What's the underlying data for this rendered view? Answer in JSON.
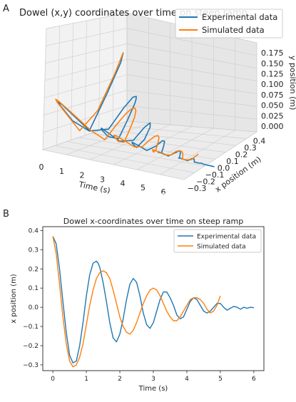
{
  "panels": {
    "a": "A",
    "b": "B"
  },
  "colors": {
    "experimental": "#1f77b4",
    "simulated": "#ff7f0e",
    "pane": "#eeeeee",
    "grid": "#cccccc"
  },
  "chart_data": [
    {
      "type": "line",
      "projection": "3d",
      "title": "Dowel (x,y) coordinates over time on steep ramp",
      "xlabel": "Time (s)",
      "ylabel": "x position (m)",
      "zlabel": "y position (m)",
      "xticks": [
        "0",
        "1",
        "2",
        "3",
        "4",
        "5",
        "6"
      ],
      "yticks": [
        "−0.3",
        "−0.2",
        "−0.1",
        "0.0",
        "0.1",
        "0.2",
        "0.3",
        "0.4"
      ],
      "zticks": [
        "0.000",
        "0.025",
        "0.050",
        "0.075",
        "0.100",
        "0.125",
        "0.150",
        "0.175"
      ],
      "xlim": [
        0,
        6
      ],
      "ylim": [
        -0.3,
        0.4
      ],
      "zlim": [
        0,
        0.2
      ],
      "grid": true,
      "legend": "top-right",
      "series": [
        {
          "name": "Experimental data"
        },
        {
          "name": "Simulated data"
        }
      ]
    },
    {
      "type": "line",
      "title": "Dowel x-coordinates over time on steep ramp",
      "xlabel": "Time (s)",
      "ylabel": "x position (m)",
      "xlim": [
        -0.3,
        6.3
      ],
      "ylim": [
        -0.33,
        0.42
      ],
      "xticks": [
        0,
        1,
        2,
        3,
        4,
        5,
        6
      ],
      "yticks": [
        -0.3,
        -0.2,
        -0.1,
        0.0,
        0.1,
        0.2,
        0.3,
        0.4
      ],
      "grid": false,
      "legend": "top-right",
      "series": [
        {
          "name": "Experimental data",
          "x": [
            0,
            0.1,
            0.2,
            0.3,
            0.4,
            0.5,
            0.6,
            0.7,
            0.8,
            0.9,
            1.0,
            1.1,
            1.2,
            1.3,
            1.35,
            1.4,
            1.5,
            1.6,
            1.7,
            1.8,
            1.9,
            2.0,
            2.1,
            2.2,
            2.3,
            2.4,
            2.5,
            2.6,
            2.7,
            2.8,
            2.9,
            3.0,
            3.1,
            3.2,
            3.3,
            3.4,
            3.5,
            3.6,
            3.7,
            3.8,
            3.9,
            4.0,
            4.1,
            4.2,
            4.3,
            4.4,
            4.5,
            4.6,
            4.7,
            4.8,
            4.9,
            5.0,
            5.1,
            5.2,
            5.3,
            5.4,
            5.5,
            5.6,
            5.7,
            5.8,
            5.9,
            6.0
          ],
          "y": [
            0.37,
            0.33,
            0.2,
            0.03,
            -0.13,
            -0.25,
            -0.29,
            -0.28,
            -0.2,
            -0.08,
            0.06,
            0.17,
            0.23,
            0.24,
            0.23,
            0.21,
            0.13,
            0.03,
            -0.08,
            -0.16,
            -0.18,
            -0.14,
            -0.06,
            0.04,
            0.12,
            0.15,
            0.13,
            0.06,
            -0.03,
            -0.09,
            -0.11,
            -0.08,
            -0.02,
            0.04,
            0.08,
            0.08,
            0.05,
            0.01,
            -0.04,
            -0.06,
            -0.05,
            -0.01,
            0.03,
            0.05,
            0.04,
            0.01,
            -0.02,
            -0.03,
            -0.02,
            0.0,
            0.02,
            0.02,
            0.0,
            -0.015,
            -0.005,
            0.005,
            0.0,
            -0.01,
            0.0,
            -0.005,
            0.0,
            -0.002
          ]
        },
        {
          "name": "Simulated data",
          "x": [
            0,
            0.1,
            0.2,
            0.3,
            0.4,
            0.5,
            0.6,
            0.7,
            0.8,
            0.9,
            1.0,
            1.1,
            1.2,
            1.3,
            1.4,
            1.5,
            1.6,
            1.7,
            1.8,
            1.9,
            2.0,
            2.1,
            2.2,
            2.3,
            2.4,
            2.5,
            2.6,
            2.7,
            2.8,
            2.9,
            3.0,
            3.1,
            3.2,
            3.3,
            3.4,
            3.5,
            3.6,
            3.7,
            3.8,
            3.9,
            4.0,
            4.1,
            4.2,
            4.3,
            4.4,
            4.5,
            4.6,
            4.7,
            4.8,
            4.9,
            5.0
          ],
          "y": [
            0.37,
            0.28,
            0.12,
            -0.05,
            -0.19,
            -0.28,
            -0.31,
            -0.3,
            -0.26,
            -0.19,
            -0.09,
            0.01,
            0.09,
            0.15,
            0.18,
            0.19,
            0.18,
            0.15,
            0.09,
            0.02,
            -0.05,
            -0.1,
            -0.13,
            -0.14,
            -0.12,
            -0.08,
            -0.03,
            0.02,
            0.06,
            0.09,
            0.1,
            0.09,
            0.06,
            0.02,
            -0.02,
            -0.05,
            -0.07,
            -0.07,
            -0.05,
            -0.02,
            0.01,
            0.04,
            0.05,
            0.05,
            0.04,
            0.02,
            -0.01,
            -0.03,
            -0.02,
            0.01,
            0.06
          ]
        }
      ]
    }
  ]
}
